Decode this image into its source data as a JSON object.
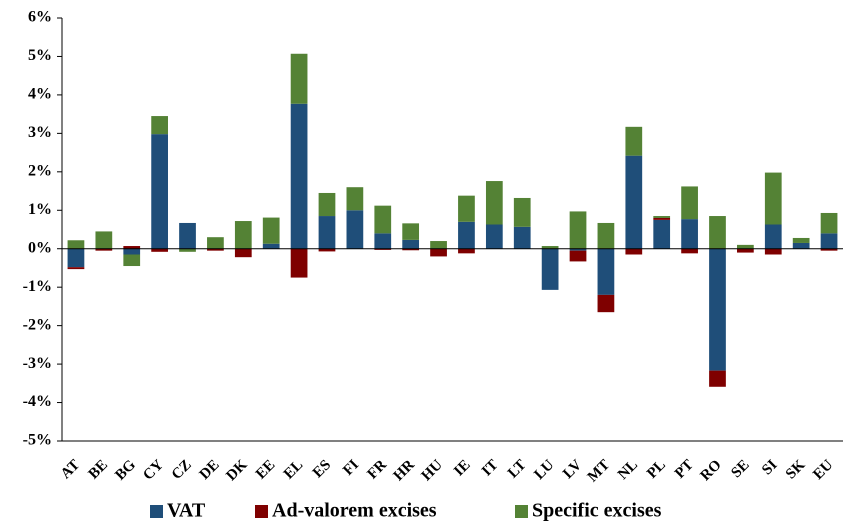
{
  "chart_data": {
    "type": "bar",
    "stacked": true,
    "categories": [
      "AT",
      "BE",
      "BG",
      "CY",
      "CZ",
      "DE",
      "DK",
      "EE",
      "EL",
      "ES",
      "FI",
      "FR",
      "HR",
      "HU",
      "IE",
      "IT",
      "LT",
      "LU",
      "LV",
      "MT",
      "NL",
      "PL",
      "PT",
      "RO",
      "SE",
      "SI",
      "SK",
      "EU"
    ],
    "series": [
      {
        "name": "VAT",
        "color": "#1f4e79",
        "values": [
          -0.48,
          0,
          -0.15,
          2.98,
          0.67,
          0,
          0,
          0.13,
          3.77,
          0.85,
          1.0,
          0.4,
          0.23,
          0,
          0.7,
          0.63,
          0.57,
          -1.07,
          -0.05,
          -1.2,
          2.42,
          0.75,
          0.77,
          -3.17,
          0,
          0.63,
          0.15,
          0.4
        ]
      },
      {
        "name": "Ad-valorem excises",
        "color": "#7f0000",
        "values": [
          -0.05,
          -0.05,
          0.07,
          -0.08,
          0,
          -0.05,
          -0.22,
          0,
          -0.75,
          -0.07,
          0,
          -0.03,
          -0.04,
          -0.2,
          -0.12,
          0,
          0,
          0,
          -0.28,
          -0.45,
          -0.15,
          0.05,
          -0.12,
          -0.42,
          -0.1,
          -0.15,
          0,
          -0.05
        ]
      },
      {
        "name": "Specific excises",
        "color": "#548235",
        "values": [
          0.22,
          0.45,
          -0.3,
          0.47,
          -0.08,
          0.3,
          0.72,
          0.68,
          1.3,
          0.6,
          0.6,
          0.72,
          0.43,
          0.2,
          0.68,
          1.13,
          0.75,
          0.07,
          0.97,
          0.67,
          0.75,
          0.05,
          0.85,
          0.85,
          0.1,
          1.35,
          0.13,
          0.53
        ]
      }
    ],
    "ylim": [
      -5,
      6
    ],
    "yticks": [
      {
        "value": -5,
        "label": "-5%"
      },
      {
        "value": -4,
        "label": "-4%"
      },
      {
        "value": -3,
        "label": "-3%"
      },
      {
        "value": -2,
        "label": "-2%"
      },
      {
        "value": -1,
        "label": "-1%"
      },
      {
        "value": 0,
        "label": "0%"
      },
      {
        "value": 1,
        "label": "1%"
      },
      {
        "value": 2,
        "label": "2%"
      },
      {
        "value": 3,
        "label": "3%"
      },
      {
        "value": 4,
        "label": "4%"
      },
      {
        "value": 5,
        "label": "5%"
      },
      {
        "value": 6,
        "label": "6%"
      }
    ],
    "grid": false,
    "legend": "bottom"
  }
}
